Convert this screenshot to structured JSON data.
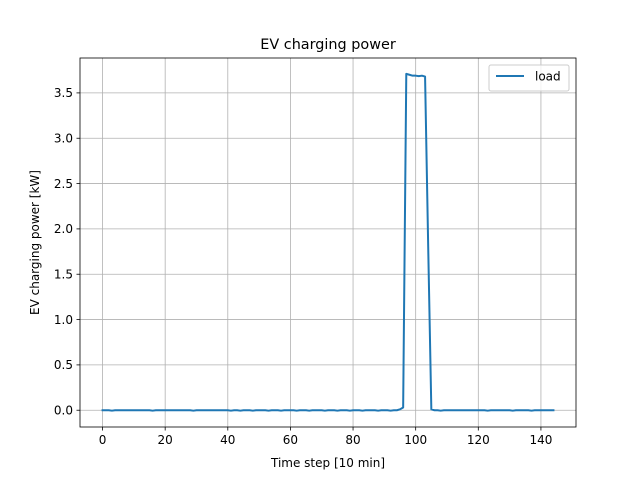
{
  "chart_data": {
    "type": "line",
    "title": "EV charging power",
    "xlabel": "Time step [10 min]",
    "ylabel": "EV charging power [kW]",
    "xlim": [
      -7.2,
      151.2
    ],
    "ylim": [
      -0.185,
      3.885
    ],
    "xticks": [
      0,
      20,
      40,
      60,
      80,
      100,
      120,
      140
    ],
    "xtick_labels": [
      "0",
      "20",
      "40",
      "60",
      "80",
      "100",
      "120",
      "140"
    ],
    "yticks": [
      0.0,
      0.5,
      1.0,
      1.5,
      2.0,
      2.5,
      3.0,
      3.5
    ],
    "ytick_labels": [
      "0.0",
      "0.5",
      "1.0",
      "1.5",
      "2.0",
      "2.5",
      "3.0",
      "3.5"
    ],
    "grid": true,
    "legend": {
      "position": "top-right"
    },
    "series": [
      {
        "name": "load",
        "color": "#1f77b4",
        "points": [
          [
            0,
            0.0
          ],
          [
            1,
            0.0
          ],
          [
            2,
            0.0
          ],
          [
            3,
            -0.005
          ],
          [
            4,
            0.0
          ],
          [
            5,
            0.0
          ],
          [
            6,
            0.0
          ],
          [
            7,
            0.0
          ],
          [
            8,
            0.0
          ],
          [
            9,
            0.0
          ],
          [
            10,
            0.0
          ],
          [
            11,
            0.0
          ],
          [
            12,
            0.0
          ],
          [
            13,
            0.0
          ],
          [
            14,
            0.0
          ],
          [
            15,
            0.0
          ],
          [
            16,
            -0.005
          ],
          [
            17,
            0.0
          ],
          [
            18,
            0.0
          ],
          [
            19,
            0.0
          ],
          [
            20,
            0.0
          ],
          [
            21,
            0.0
          ],
          [
            22,
            0.0
          ],
          [
            23,
            0.0
          ],
          [
            24,
            0.0
          ],
          [
            25,
            0.0
          ],
          [
            26,
            0.0
          ],
          [
            27,
            0.0
          ],
          [
            28,
            0.0
          ],
          [
            29,
            -0.005
          ],
          [
            30,
            0.0
          ],
          [
            31,
            0.0
          ],
          [
            32,
            0.0
          ],
          [
            33,
            0.0
          ],
          [
            34,
            0.0
          ],
          [
            35,
            0.0
          ],
          [
            36,
            0.0
          ],
          [
            37,
            0.0
          ],
          [
            38,
            0.0
          ],
          [
            39,
            0.0
          ],
          [
            40,
            0.0
          ],
          [
            41,
            -0.005
          ],
          [
            42,
            0.0
          ],
          [
            43,
            0.0
          ],
          [
            44,
            -0.005
          ],
          [
            45,
            0.0
          ],
          [
            46,
            0.0
          ],
          [
            47,
            0.0
          ],
          [
            48,
            -0.005
          ],
          [
            49,
            0.0
          ],
          [
            50,
            0.0
          ],
          [
            51,
            0.0
          ],
          [
            52,
            0.0
          ],
          [
            53,
            -0.005
          ],
          [
            54,
            0.0
          ],
          [
            55,
            0.0
          ],
          [
            56,
            0.0
          ],
          [
            57,
            -0.005
          ],
          [
            58,
            0.0
          ],
          [
            59,
            0.0
          ],
          [
            60,
            0.0
          ],
          [
            61,
            0.0
          ],
          [
            62,
            -0.005
          ],
          [
            63,
            0.0
          ],
          [
            64,
            0.0
          ],
          [
            65,
            0.0
          ],
          [
            66,
            -0.005
          ],
          [
            67,
            0.0
          ],
          [
            68,
            0.0
          ],
          [
            69,
            0.0
          ],
          [
            70,
            0.0
          ],
          [
            71,
            -0.005
          ],
          [
            72,
            0.0
          ],
          [
            73,
            0.0
          ],
          [
            74,
            0.0
          ],
          [
            75,
            -0.005
          ],
          [
            76,
            0.0
          ],
          [
            77,
            0.0
          ],
          [
            78,
            0.0
          ],
          [
            79,
            -0.005
          ],
          [
            80,
            0.0
          ],
          [
            81,
            0.0
          ],
          [
            82,
            0.0
          ],
          [
            83,
            -0.005
          ],
          [
            84,
            0.0
          ],
          [
            85,
            0.0
          ],
          [
            86,
            0.0
          ],
          [
            87,
            0.0
          ],
          [
            88,
            -0.005
          ],
          [
            89,
            0.0
          ],
          [
            90,
            0.0
          ],
          [
            91,
            0.0
          ],
          [
            92,
            -0.005
          ],
          [
            93,
            0.0
          ],
          [
            94,
            0.0
          ],
          [
            95,
            0.01
          ],
          [
            96,
            0.03
          ],
          [
            97,
            3.71
          ],
          [
            98,
            3.7
          ],
          [
            99,
            3.69
          ],
          [
            100,
            3.69
          ],
          [
            101,
            3.685
          ],
          [
            102,
            3.69
          ],
          [
            103,
            3.68
          ],
          [
            104,
            1.8
          ],
          [
            105,
            0.01
          ],
          [
            106,
            0.0
          ],
          [
            107,
            0.0
          ],
          [
            108,
            -0.005
          ],
          [
            109,
            0.0
          ],
          [
            110,
            0.0
          ],
          [
            111,
            0.0
          ],
          [
            112,
            0.0
          ],
          [
            113,
            0.0
          ],
          [
            114,
            0.0
          ],
          [
            115,
            0.0
          ],
          [
            116,
            0.0
          ],
          [
            117,
            0.0
          ],
          [
            118,
            0.0
          ],
          [
            119,
            0.0
          ],
          [
            120,
            0.0
          ],
          [
            121,
            0.0
          ],
          [
            122,
            0.0
          ],
          [
            123,
            -0.005
          ],
          [
            124,
            0.0
          ],
          [
            125,
            0.0
          ],
          [
            126,
            0.0
          ],
          [
            127,
            0.0
          ],
          [
            128,
            0.0
          ],
          [
            129,
            0.0
          ],
          [
            130,
            0.0
          ],
          [
            131,
            -0.005
          ],
          [
            132,
            0.0
          ],
          [
            133,
            0.0
          ],
          [
            134,
            0.0
          ],
          [
            135,
            0.0
          ],
          [
            136,
            0.0
          ],
          [
            137,
            -0.005
          ],
          [
            138,
            0.0
          ],
          [
            139,
            0.0
          ],
          [
            140,
            0.0
          ],
          [
            141,
            0.0
          ],
          [
            142,
            0.0
          ],
          [
            143,
            0.0
          ],
          [
            144,
            0.0
          ]
        ]
      }
    ]
  }
}
